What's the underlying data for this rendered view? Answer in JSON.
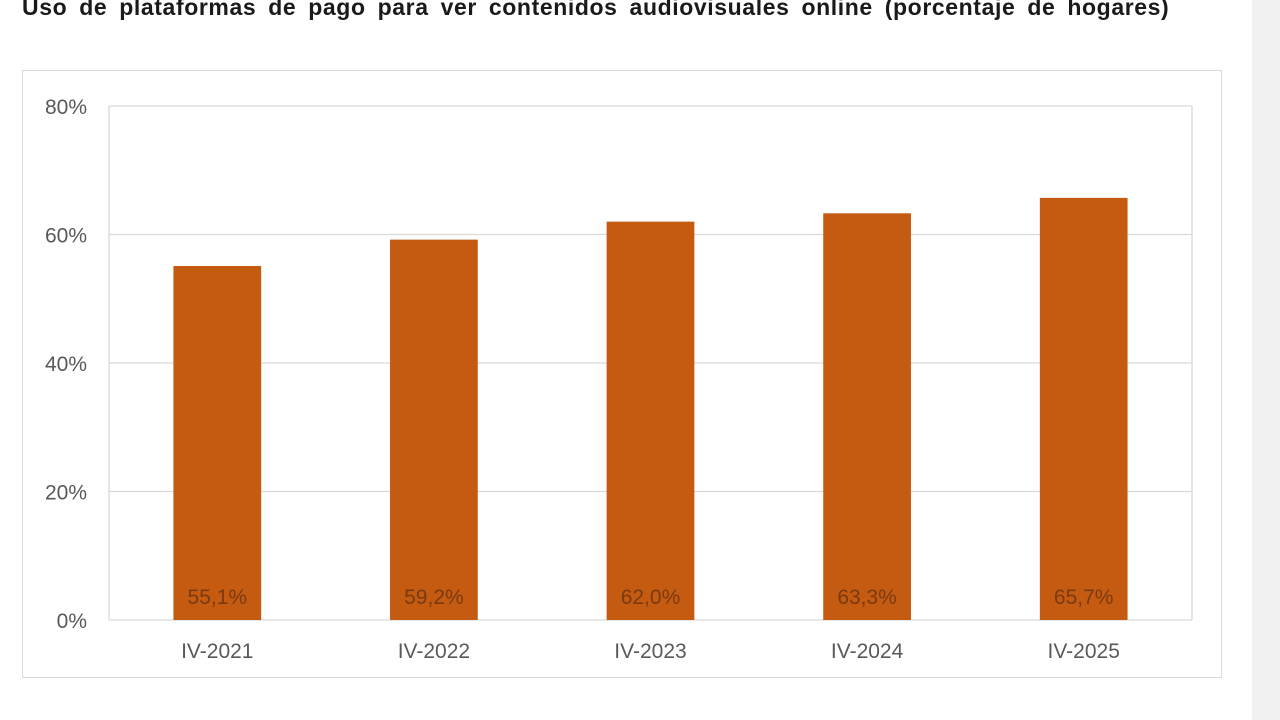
{
  "colors": {
    "bar": "#c55a11",
    "grid": "#d9d9d9",
    "axis_text": "#595959",
    "data_label": "#7a3a10",
    "title": "#1a1a1a"
  },
  "chart_data": {
    "type": "bar",
    "title": "Uso de plataformas de pago para ver contenidos audiovisuales online (porcentaje de hogares)",
    "xlabel": "",
    "ylabel": "",
    "categories": [
      "IV-2021",
      "IV-2022",
      "IV-2023",
      "IV-2024",
      "IV-2025"
    ],
    "values": [
      55.1,
      59.2,
      62.0,
      63.3,
      65.7
    ],
    "data_labels": [
      "55,1%",
      "59,2%",
      "62,0%",
      "63,3%",
      "65,7%"
    ],
    "ylim": [
      0,
      80
    ],
    "yticks": [
      0,
      20,
      40,
      60,
      80
    ],
    "ytick_labels": [
      "0%",
      "20%",
      "40%",
      "60%",
      "80%"
    ],
    "grid": true,
    "legend": "none"
  }
}
